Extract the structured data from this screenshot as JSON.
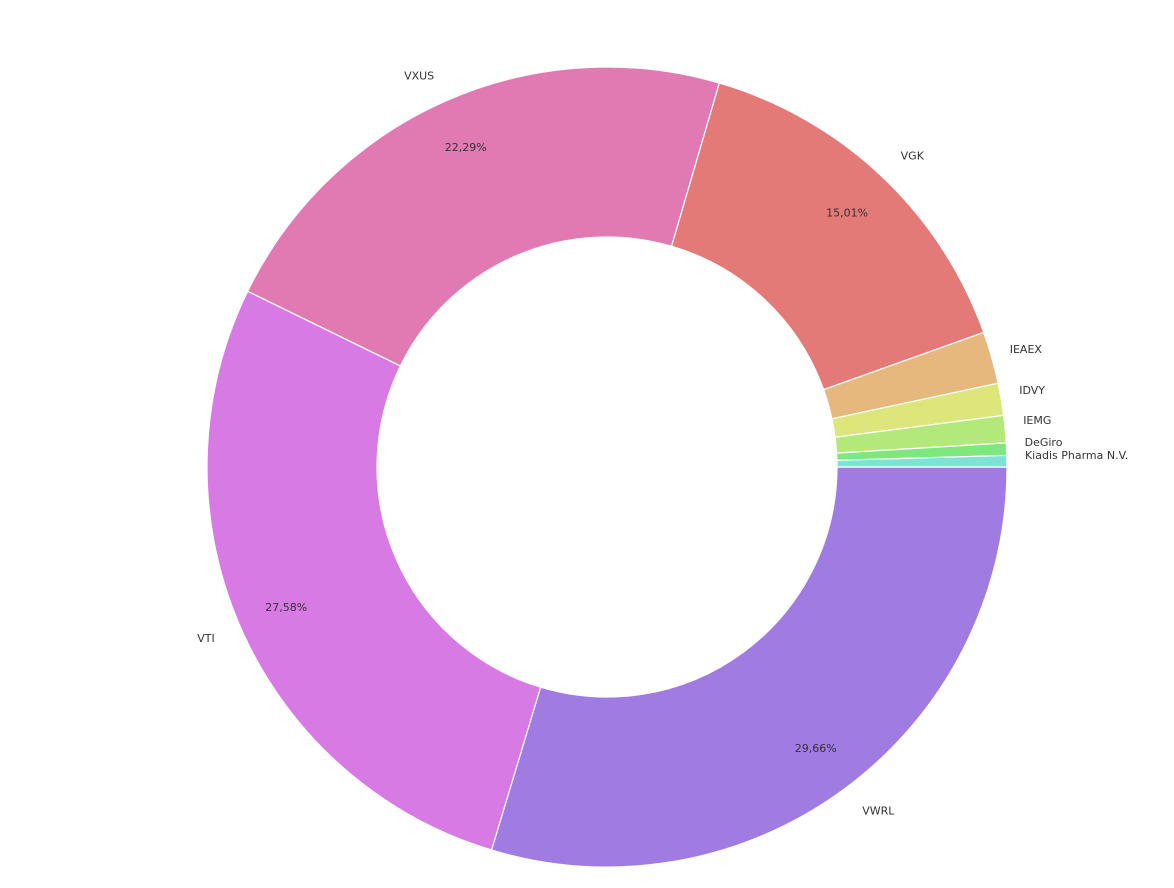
{
  "chart_data": {
    "type": "pie",
    "donut": true,
    "slices": [
      {
        "label": "VWRL",
        "value": 29.66,
        "pct_text": "29,66%",
        "color": "#a07be1"
      },
      {
        "label": "VTI",
        "value": 27.58,
        "pct_text": "27,58%",
        "color": "#d87ae3"
      },
      {
        "label": "VXUS",
        "value": 22.29,
        "pct_text": "22,29%",
        "color": "#e17ab3"
      },
      {
        "label": "VGK",
        "value": 15.01,
        "pct_text": "15,01%",
        "color": "#e37a78"
      },
      {
        "label": "IEAEX",
        "value": 2.1,
        "pct_text": "",
        "color": "#e6b87e"
      },
      {
        "label": "IDVY",
        "value": 1.3,
        "pct_text": "",
        "color": "#dce67a"
      },
      {
        "label": "IEMG",
        "value": 1.1,
        "pct_text": "",
        "color": "#b2e97a"
      },
      {
        "label": "DeGiro",
        "value": 0.5,
        "pct_text": "",
        "color": "#7ee87e"
      },
      {
        "label": "Kiadis Pharma N.V.",
        "value": 0.46,
        "pct_text": "",
        "color": "#7ee3d4"
      }
    ],
    "start": "3 o'clock",
    "direction": "clockwise",
    "separator_color": "#ffffff"
  }
}
